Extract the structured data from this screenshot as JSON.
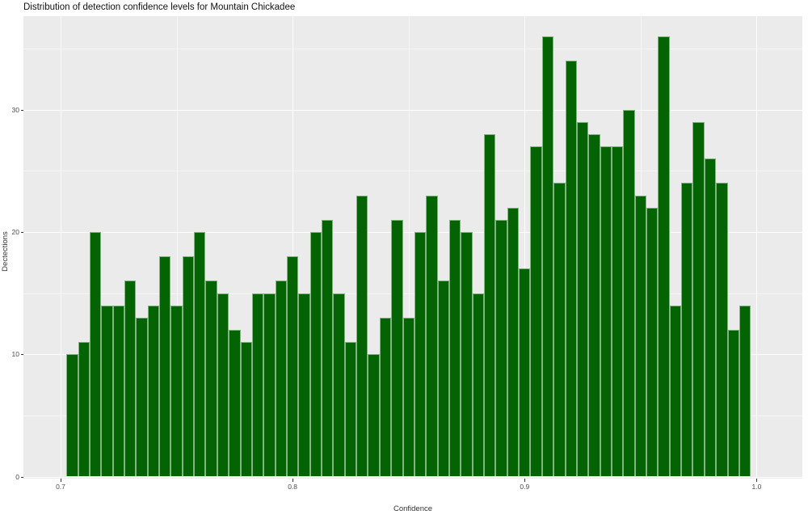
{
  "figure": {
    "title": "Distribution of detection confidence levels for Mountain Chickadee"
  },
  "chart_data": {
    "type": "bar",
    "subtype": "histogram",
    "title": "Distribution of detection confidence levels for Mountain Chickadee",
    "xlabel": "Confidence",
    "ylabel": "Dectections",
    "legend": "none",
    "grid": "on",
    "bin_width": 0.005,
    "bin_centers": [
      0.705,
      0.71,
      0.715,
      0.72,
      0.725,
      0.73,
      0.735,
      0.74,
      0.745,
      0.75,
      0.755,
      0.76,
      0.765,
      0.77,
      0.775,
      0.78,
      0.785,
      0.79,
      0.795,
      0.8,
      0.805,
      0.81,
      0.815,
      0.82,
      0.825,
      0.83,
      0.835,
      0.84,
      0.845,
      0.85,
      0.855,
      0.86,
      0.865,
      0.87,
      0.875,
      0.88,
      0.885,
      0.89,
      0.895,
      0.9,
      0.905,
      0.91,
      0.915,
      0.92,
      0.925,
      0.93,
      0.935,
      0.94,
      0.945,
      0.95,
      0.955,
      0.96,
      0.965,
      0.97,
      0.975,
      0.98,
      0.985,
      0.99,
      0.995
    ],
    "values": [
      10,
      11,
      20,
      14,
      14,
      16,
      13,
      14,
      18,
      14,
      18,
      20,
      16,
      15,
      12,
      11,
      15,
      15,
      16,
      18,
      15,
      20,
      21,
      15,
      11,
      23,
      10,
      13,
      21,
      13,
      20,
      23,
      16,
      21,
      20,
      15,
      28,
      21,
      22,
      17,
      27,
      36,
      24,
      34,
      29,
      28,
      27,
      27,
      30,
      23,
      22,
      36,
      14,
      24,
      29,
      26,
      24,
      12,
      14
    ],
    "x_ticks": {
      "values": [
        0.7,
        0.8,
        0.9,
        1.0
      ],
      "labels": [
        "0.7",
        "0.8",
        "0.9",
        "1.0"
      ],
      "minor": [
        0.75,
        0.85,
        0.95
      ]
    },
    "y_ticks": {
      "values": [
        0,
        10,
        20,
        30
      ],
      "labels": [
        "0",
        "10",
        "20",
        "30"
      ],
      "minor": [
        5,
        15,
        25,
        35
      ]
    },
    "xlim": [
      0.684,
      1.019
    ],
    "ylim": [
      0,
      37.6
    ],
    "colors": {
      "bar_fill": "#046404",
      "bar_edge": "#cfe3cf",
      "panel_bg": "#ebebeb",
      "grid_major": "#ffffff",
      "grid_minor": "#f5f5f5",
      "tick_text": "#4d4d4d",
      "axis_title_text": "#333333",
      "title_text": "#111111",
      "background": "#ffffff"
    }
  }
}
